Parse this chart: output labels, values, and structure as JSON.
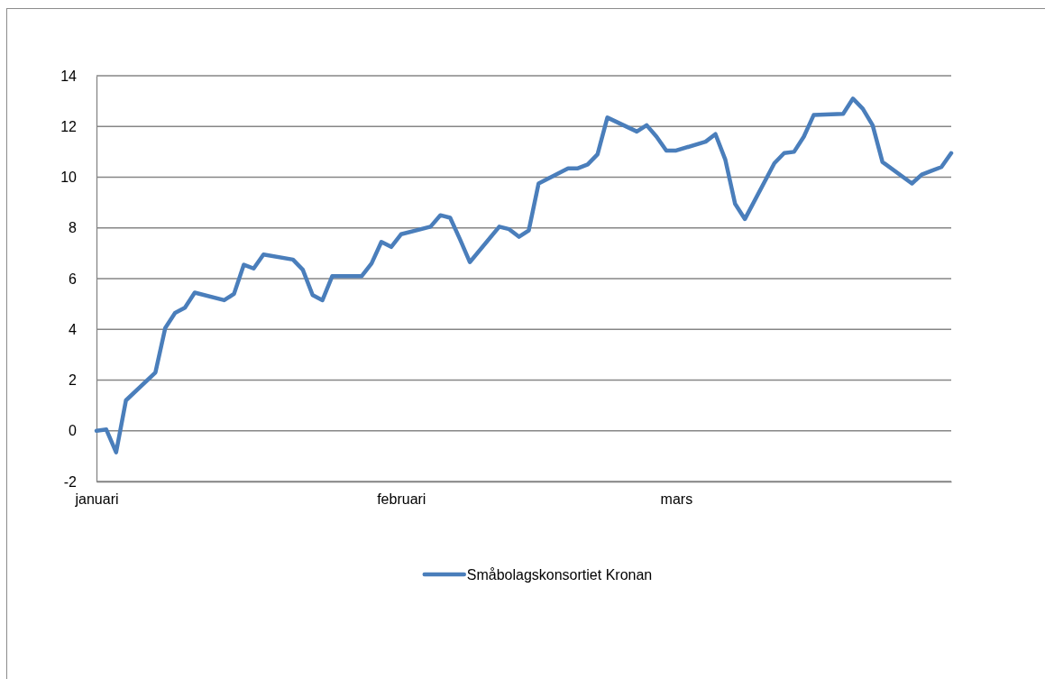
{
  "chart_data": {
    "type": "line",
    "x": [
      "--01-01",
      "--01-02",
      "--01-03",
      "--01-04",
      "--01-07",
      "--01-08",
      "--01-09",
      "--01-10",
      "--01-11",
      "--01-14",
      "--01-15",
      "--01-16",
      "--01-17",
      "--01-18",
      "--01-21",
      "--01-22",
      "--01-23",
      "--01-24",
      "--01-25",
      "--01-28",
      "--01-29",
      "--01-30",
      "--01-31",
      "--02-01",
      "--02-04",
      "--02-05",
      "--02-06",
      "--02-07",
      "--02-08",
      "--02-11",
      "--02-12",
      "--02-13",
      "--02-14",
      "--02-15",
      "--02-18",
      "--02-19",
      "--02-20",
      "--02-21",
      "--02-22",
      "--02-25",
      "--02-26",
      "--02-27",
      "--02-28",
      "--03-01",
      "--03-04",
      "--03-05",
      "--03-06",
      "--03-07",
      "--03-08",
      "--03-11",
      "--03-12",
      "--03-13",
      "--03-14",
      "--03-15",
      "--03-18",
      "--03-19",
      "--03-20",
      "--03-21",
      "--03-22",
      "--03-25",
      "--03-26",
      "--03-27",
      "--03-28",
      "--03-29"
    ],
    "series": [
      {
        "name": "Småbolagskonsortiet Kronan",
        "color": "#4a7ebb",
        "values": [
          0,
          0.05,
          -0.85,
          1.2,
          2.3,
          4.05,
          4.65,
          4.85,
          5.45,
          5.15,
          5.4,
          6.55,
          6.4,
          6.95,
          6.75,
          6.35,
          5.35,
          5.15,
          6.1,
          6.1,
          6.6,
          7.45,
          7.25,
          7.75,
          8.05,
          8.5,
          8.4,
          7.55,
          6.65,
          8.05,
          7.95,
          7.65,
          7.9,
          9.75,
          10.35,
          10.35,
          10.5,
          10.9,
          12.35,
          11.8,
          12.05,
          11.6,
          11.05,
          11.05,
          11.4,
          11.7,
          10.7,
          8.95,
          8.35,
          10.55,
          10.95,
          11.0,
          11.6,
          12.45,
          12.5,
          13.1,
          12.7,
          12.05,
          10.6,
          9.75,
          10.1,
          10.25,
          10.4,
          10.95
        ]
      }
    ],
    "xlim": [
      "--01-01",
      "--03-29"
    ],
    "xticks": [
      {
        "value": "--01-01",
        "label": "januari"
      },
      {
        "value": "--02-01",
        "label": "februari"
      },
      {
        "value": "--03-01",
        "label": "mars"
      }
    ],
    "ylim": [
      -2,
      14
    ],
    "yticks": [
      -2,
      0,
      2,
      4,
      6,
      8,
      10,
      12,
      14
    ],
    "grid": "y",
    "legend": "bottom",
    "marker": "none",
    "line_style": "solid"
  }
}
